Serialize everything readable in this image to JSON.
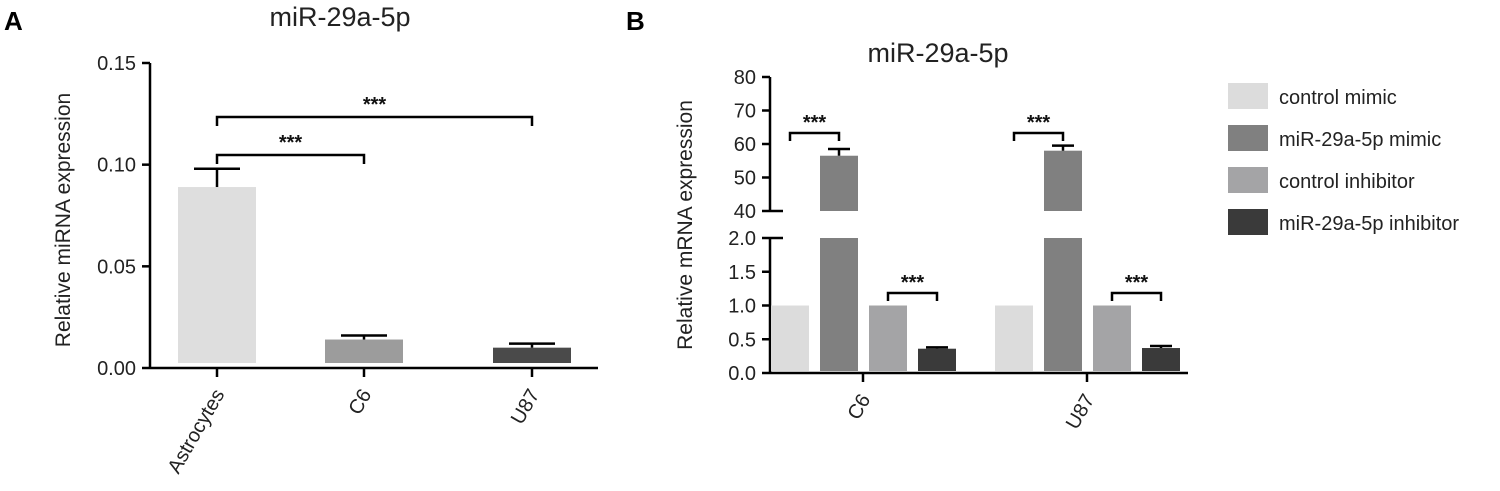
{
  "panels": {
    "a": {
      "letter": "A"
    },
    "b": {
      "letter": "B"
    }
  },
  "chart_data": [
    {
      "type": "bar",
      "title": "miR-29a-5p",
      "ylabel": "Relative miRNA expression",
      "xlabel": "",
      "ylim": [
        0,
        0.15
      ],
      "yticks": [
        "0.00",
        "0.05",
        "0.10",
        "0.15"
      ],
      "categories": [
        "Astrocytes",
        "C6",
        "U87"
      ],
      "values": [
        0.089,
        0.014,
        0.01
      ],
      "errors": [
        0.009,
        0.002,
        0.002
      ],
      "colors": [
        "#dedede",
        "#9c9c9c",
        "#4a4a4a"
      ],
      "significance": [
        {
          "from": "Astrocytes",
          "to": "C6",
          "label": "***"
        },
        {
          "from": "Astrocytes",
          "to": "U87",
          "label": "***"
        }
      ],
      "grid": false,
      "legend": "none"
    },
    {
      "type": "bar",
      "title": "miR-29a-5p",
      "ylabel": "Relative mRNA expression",
      "xlabel": "",
      "broken_axis": true,
      "ylim_lower": [
        0,
        2.0
      ],
      "ylim_upper": [
        40,
        80
      ],
      "yticks_lower": [
        "0.0",
        "0.5",
        "1.0",
        "1.5",
        "2.0"
      ],
      "yticks_upper": [
        "40",
        "50",
        "60",
        "70",
        "80"
      ],
      "categories": [
        "C6",
        "U87"
      ],
      "series": [
        {
          "name": "control mimic",
          "color": "#dcdcdc",
          "values": [
            1.0,
            1.0
          ],
          "errors": [
            0,
            0
          ]
        },
        {
          "name": "miR-29a-5p mimic",
          "color": "#808080",
          "values": [
            56.5,
            58.0
          ],
          "errors": [
            2.0,
            1.5
          ]
        },
        {
          "name": "control inhibitor",
          "color": "#a4a4a6",
          "values": [
            1.0,
            1.0
          ],
          "errors": [
            0,
            0
          ]
        },
        {
          "name": "miR-29a-5p inhibitor",
          "color": "#3a3a3a",
          "values": [
            0.36,
            0.37
          ],
          "errors": [
            0.02,
            0.03
          ]
        }
      ],
      "significance": [
        {
          "category": "C6",
          "between": [
            "control mimic",
            "miR-29a-5p mimic"
          ],
          "label": "***"
        },
        {
          "category": "C6",
          "between": [
            "control inhibitor",
            "miR-29a-5p inhibitor"
          ],
          "label": "***"
        },
        {
          "category": "U87",
          "between": [
            "control mimic",
            "miR-29a-5p mimic"
          ],
          "label": "***"
        },
        {
          "category": "U87",
          "between": [
            "control inhibitor",
            "miR-29a-5p inhibitor"
          ],
          "label": "***"
        }
      ],
      "grid": false,
      "legend": "right"
    }
  ]
}
